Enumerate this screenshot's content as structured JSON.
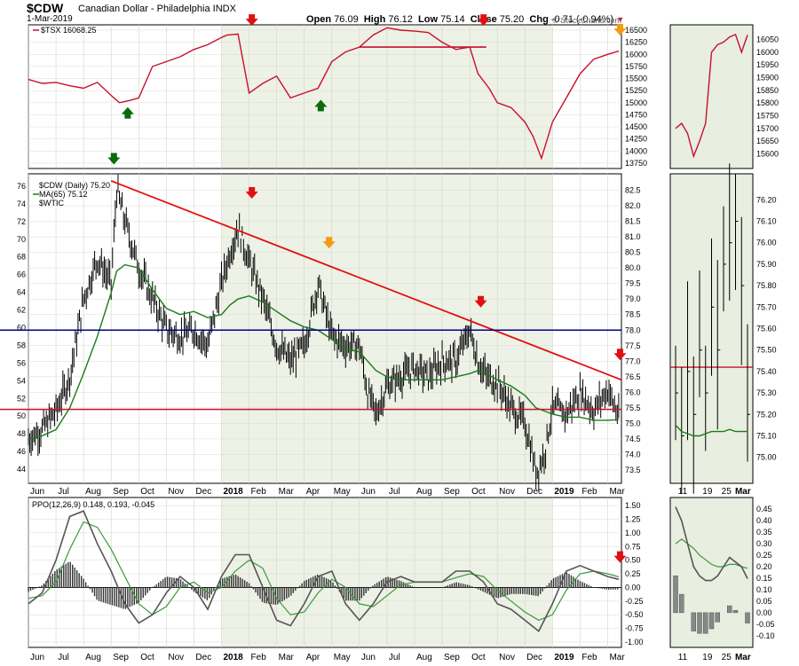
{
  "header": {
    "symbol": "$CDW",
    "name": "Canadian Dollar - Philadelphia",
    "exchange": "INDX",
    "date": "1-Mar-2019",
    "open_label": "Open",
    "open": "76.09",
    "high_label": "High",
    "high": "76.12",
    "low_label": "Low",
    "low": "75.14",
    "close_label": "Close",
    "close": "75.20",
    "chg_label": "Chg",
    "chg": "-0.71 (-0.94%)",
    "source": "© StockCharts.com"
  },
  "colors": {
    "tsx": "#c8102e",
    "price": "#000000",
    "ma": "#1a7a1a",
    "trendline": "#e01010",
    "hline_blue": "#00008b",
    "hline_red": "#c8102e",
    "panel_bg": "#ffffff",
    "panel_band": "#e8eee0",
    "ppo_line": "#555555",
    "ppo_signal": "#3a9a3a",
    "hist": "#333333",
    "arrow_red": "#e01010",
    "arrow_green": "#0a6b0a",
    "arrow_orange": "#f39c12"
  },
  "chart_data": {
    "type": "line",
    "x_axis_labels": [
      "Jun",
      "Jul",
      "Aug",
      "Sep",
      "Oct",
      "Nov",
      "Dec",
      "2018",
      "Feb",
      "Mar",
      "Apr",
      "May",
      "Jun",
      "Jul",
      "Aug",
      "Sep",
      "Oct",
      "Nov",
      "Dec",
      "2019",
      "Feb",
      "Mar"
    ],
    "zoom_x_labels": [
      "11",
      "19",
      "25",
      "Mar"
    ],
    "panels": [
      {
        "id": "tsx",
        "legend": "$TSX 16068.25",
        "y_ticks": [
          13750,
          14000,
          14250,
          14500,
          14750,
          15000,
          15250,
          15500,
          15750,
          16000,
          16250,
          16500
        ],
        "zoom_y_ticks": [
          15600,
          15650,
          15700,
          15750,
          15800,
          15850,
          15900,
          15950,
          16000,
          16050
        ],
        "x_month_index": [
          0,
          0.5,
          1,
          1.5,
          2,
          2.5,
          3,
          3.3,
          3.7,
          4,
          4.5,
          5,
          5.5,
          6,
          6.5,
          7,
          7.2,
          7.6,
          8,
          8.5,
          9,
          9.5,
          10,
          10.5,
          11,
          11.5,
          12,
          12.5,
          13,
          13.5,
          14,
          14.5,
          15,
          15.5,
          16,
          16.3,
          16.7,
          17,
          17.5,
          18,
          18.3,
          18.6,
          19,
          19.5,
          20,
          20.5,
          21,
          21.4
        ],
        "values": [
          15480,
          15400,
          15420,
          15350,
          15300,
          15420,
          15150,
          15000,
          15050,
          15100,
          15750,
          15850,
          15950,
          16100,
          16200,
          16350,
          16400,
          16420,
          15200,
          15400,
          15550,
          15100,
          15200,
          15300,
          15850,
          16050,
          16150,
          16400,
          16550,
          16500,
          16480,
          16450,
          16250,
          16100,
          16150,
          15600,
          15300,
          15000,
          14900,
          14600,
          14300,
          13850,
          14600,
          15100,
          15600,
          15900,
          16000,
          16068
        ],
        "zoom_values": [
          15700,
          15720,
          15680,
          15590,
          15650,
          15720,
          16000,
          16030,
          16040,
          16060,
          16070,
          16000,
          16068
        ],
        "annotations": [
          {
            "type": "hline",
            "from_index": 12.0,
            "to_index": 16.6,
            "value": 16150
          }
        ]
      },
      {
        "id": "price",
        "legend": "$CDW (Daily) 75.20",
        "legend_ma": "MA(65) 75.12",
        "legend_overlay": "$WTIC",
        "y_left_ticks": [
          44,
          46,
          48,
          50,
          52,
          54,
          56,
          58,
          60,
          62,
          64,
          66,
          68,
          70,
          72,
          74,
          76
        ],
        "y_right_ticks": [
          73.5,
          74.0,
          74.5,
          75.0,
          75.5,
          76.0,
          76.5,
          77.0,
          77.5,
          78.0,
          78.5,
          79.0,
          79.5,
          80.0,
          80.5,
          81.0,
          81.5,
          82.0,
          82.5
        ],
        "zoom_y_ticks": [
          75.0,
          75.1,
          75.2,
          75.3,
          75.4,
          75.5,
          75.6,
          75.7,
          75.8,
          75.9,
          76.0,
          76.1,
          76.2
        ],
        "x_month_index": [
          0,
          0.5,
          1,
          1.5,
          2,
          2.5,
          3,
          3.2,
          3.5,
          4,
          4.5,
          5,
          5.5,
          6,
          6.5,
          7,
          7.3,
          7.6,
          8,
          8.5,
          9,
          9.5,
          10,
          10.5,
          11,
          11.5,
          12,
          12.3,
          12.6,
          13,
          13.5,
          14,
          14.5,
          15,
          15.5,
          16,
          16.3,
          16.6,
          17,
          17.5,
          18,
          18.2,
          18.4,
          18.7,
          19,
          19.5,
          20,
          20.5,
          21,
          21.4
        ],
        "close": [
          74.5,
          74.8,
          75.4,
          76.5,
          79.0,
          80.3,
          79.5,
          82.5,
          81.5,
          80.0,
          79.0,
          78.0,
          77.8,
          78.0,
          77.5,
          79.5,
          80.5,
          81.3,
          80.2,
          79.0,
          77.5,
          77.0,
          77.5,
          79.5,
          77.8,
          77.5,
          77.5,
          76.0,
          75.3,
          76.2,
          76.5,
          76.8,
          76.5,
          77.0,
          77.0,
          78.0,
          77.0,
          76.5,
          76.3,
          75.5,
          75.0,
          74.3,
          73.4,
          74.0,
          75.5,
          75.3,
          76.0,
          75.4,
          76.1,
          75.2
        ],
        "ma": [
          74.5,
          74.6,
          74.8,
          75.5,
          76.6,
          77.8,
          79.2,
          79.9,
          80.1,
          80.0,
          79.3,
          78.7,
          78.5,
          78.6,
          78.4,
          78.5,
          78.8,
          79.0,
          79.1,
          78.9,
          78.6,
          78.3,
          78.1,
          78.0,
          77.7,
          77.4,
          77.3,
          77.0,
          76.7,
          76.5,
          76.4,
          76.4,
          76.4,
          76.4,
          76.5,
          76.6,
          76.7,
          76.6,
          76.4,
          76.2,
          75.9,
          75.7,
          75.5,
          75.4,
          75.3,
          75.2,
          75.2,
          75.1,
          75.1,
          75.12
        ],
        "zoom_close": [
          75.3,
          75.1,
          75.4,
          75.2,
          75.5,
          75.3,
          75.7,
          75.5,
          75.9,
          76.0,
          76.1,
          75.8,
          75.2
        ],
        "zoom_ma": [
          75.15,
          75.12,
          75.11,
          75.1,
          75.1,
          75.11,
          75.12,
          75.12,
          75.12,
          75.13,
          75.12,
          75.12,
          75.12
        ],
        "annotations": [
          {
            "type": "trendline",
            "from": {
              "x_index": 3.0,
              "y": 82.8
            },
            "to": {
              "x_index": 21.5,
              "y": 76.4
            }
          },
          {
            "type": "hline",
            "value": 78.0,
            "color": "hline_blue",
            "scale": "right"
          },
          {
            "type": "hline",
            "value": 75.45,
            "color": "hline_red",
            "scale": "right"
          }
        ]
      },
      {
        "id": "ppo",
        "legend": "PPO(12,26,9) 0.148, 0.193, -0.045",
        "y_ticks": [
          -1.0,
          -0.75,
          -0.5,
          -0.25,
          0.0,
          0.25,
          0.5,
          0.75,
          1.0,
          1.25,
          1.5
        ],
        "zoom_y_ticks": [
          -0.1,
          -0.05,
          0.0,
          0.05,
          0.1,
          0.15,
          0.2,
          0.25,
          0.3,
          0.35,
          0.4,
          0.45
        ],
        "x_month_index": [
          0,
          0.5,
          1,
          1.5,
          2,
          2.5,
          3,
          3.5,
          4,
          4.5,
          5,
          5.5,
          6,
          6.5,
          7,
          7.5,
          8,
          8.5,
          9,
          9.5,
          10,
          10.5,
          11,
          11.5,
          12,
          12.5,
          13,
          13.5,
          14,
          14.5,
          15,
          15.5,
          16,
          16.5,
          17,
          17.5,
          18,
          18.5,
          19,
          19.5,
          20,
          20.5,
          21,
          21.4
        ],
        "ppo": [
          -0.3,
          -0.1,
          0.5,
          1.3,
          1.4,
          0.8,
          0.3,
          -0.3,
          -0.65,
          -0.5,
          -0.1,
          0.2,
          0.0,
          -0.4,
          0.2,
          0.6,
          0.6,
          0.0,
          -0.6,
          -0.7,
          -0.3,
          0.2,
          0.3,
          -0.3,
          -0.6,
          -0.3,
          0.1,
          0.2,
          0.1,
          0.1,
          0.1,
          0.3,
          0.3,
          0.1,
          -0.3,
          -0.4,
          -0.6,
          -0.8,
          -0.3,
          0.3,
          0.4,
          0.3,
          0.2,
          0.148
        ],
        "signal": [
          -0.2,
          -0.15,
          0.1,
          0.7,
          1.2,
          1.1,
          0.7,
          0.2,
          -0.3,
          -0.5,
          -0.35,
          0.0,
          0.1,
          -0.1,
          0.0,
          0.3,
          0.5,
          0.35,
          -0.2,
          -0.5,
          -0.45,
          -0.1,
          0.15,
          0.0,
          -0.3,
          -0.35,
          -0.15,
          0.05,
          0.1,
          0.1,
          0.1,
          0.18,
          0.25,
          0.2,
          -0.05,
          -0.25,
          -0.45,
          -0.6,
          -0.5,
          -0.05,
          0.25,
          0.3,
          0.25,
          0.193
        ],
        "zoom_ppo": [
          0.46,
          0.4,
          0.3,
          0.2,
          0.16,
          0.14,
          0.14,
          0.16,
          0.2,
          0.24,
          0.22,
          0.2,
          0.148
        ],
        "zoom_signal": [
          0.3,
          0.32,
          0.3,
          0.28,
          0.25,
          0.23,
          0.21,
          0.2,
          0.2,
          0.21,
          0.21,
          0.2,
          0.193
        ],
        "zoom_hist": [
          0.16,
          0.08,
          0.0,
          -0.08,
          -0.09,
          -0.09,
          -0.07,
          -0.04,
          0.0,
          0.03,
          0.01,
          0.0,
          -0.045
        ]
      }
    ],
    "arrows": [
      {
        "panel": "tsx",
        "x_index": 3.6,
        "dir": "up",
        "color": "arrow_green",
        "at_value": 14800
      },
      {
        "panel": "tsx",
        "x_index": 8.1,
        "dir": "down",
        "color": "arrow_red",
        "at_value": 16700
      },
      {
        "panel": "tsx",
        "x_index": 10.6,
        "dir": "up",
        "color": "arrow_green",
        "at_value": 14950
      },
      {
        "panel": "tsx",
        "x_index": 16.5,
        "dir": "down",
        "color": "arrow_red",
        "at_value": 16700
      },
      {
        "panel": "tsx",
        "x_index": 21.45,
        "dir": "down",
        "color": "arrow_orange",
        "at_value": 16500
      },
      {
        "panel": "price",
        "x_index": 3.1,
        "dir": "down",
        "color": "arrow_green",
        "at_value": 83.5
      },
      {
        "panel": "price",
        "x_index": 8.1,
        "dir": "down",
        "color": "arrow_red",
        "at_value": 82.4
      },
      {
        "panel": "price",
        "x_index": 10.9,
        "dir": "down",
        "color": "arrow_orange",
        "at_value": 80.8
      },
      {
        "panel": "price",
        "x_index": 16.4,
        "dir": "down",
        "color": "arrow_red",
        "at_value": 78.9
      },
      {
        "panel": "price",
        "x_index": 21.45,
        "dir": "down",
        "color": "arrow_red",
        "at_value": 77.2
      },
      {
        "panel": "ppo",
        "x_index": 21.45,
        "dir": "down",
        "color": "arrow_red",
        "at_value": 0.55
      }
    ],
    "grid": true
  }
}
